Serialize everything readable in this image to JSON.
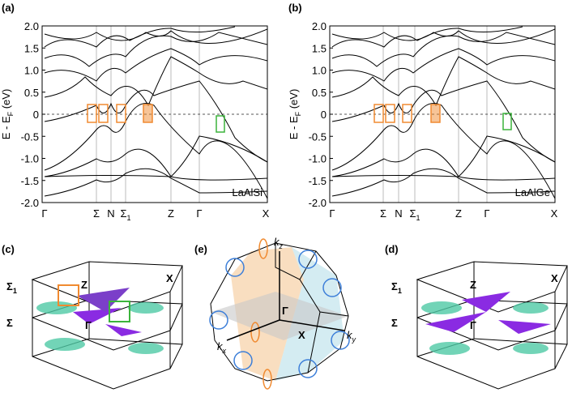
{
  "band_axis": {
    "ylabel": "E - E",
    "ylabel_sub": "F",
    "ylabel_unit": " (eV)",
    "yticks": [
      "2.0",
      "1.5",
      "1.0",
      "0.5",
      "0",
      "-0.5",
      "-1.0",
      "-1.5",
      "-2.0"
    ]
  },
  "kpoints": [
    {
      "label": "Γ"
    },
    {
      "label": "Σ"
    },
    {
      "label": "N"
    },
    {
      "label": "Σ",
      "sub": "1"
    },
    {
      "label": "Z"
    },
    {
      "label": "Γ"
    },
    {
      "label": "X"
    }
  ],
  "panels": {
    "a": {
      "label": "(a)",
      "material": "LaAlSi"
    },
    "b": {
      "label": "(b)",
      "material": "LaAlGe"
    },
    "c": {
      "label": "(c)",
      "points": [
        {
          "label": "Σ",
          "sub": "1"
        },
        {
          "label": "Z"
        },
        {
          "label": "X"
        },
        {
          "label": "Σ"
        },
        {
          "label": "Γ"
        }
      ]
    },
    "e": {
      "label": "(e)",
      "axes": [
        {
          "label": "k",
          "sub": "z"
        },
        {
          "label": "k",
          "sub": "y"
        },
        {
          "label": "k",
          "sub": "x"
        }
      ],
      "points": [
        {
          "label": "Γ"
        },
        {
          "label": "X"
        }
      ]
    },
    "d": {
      "label": "(d)",
      "points": [
        {
          "label": "Σ",
          "sub": "1"
        },
        {
          "label": "Z"
        },
        {
          "label": "X"
        },
        {
          "label": "Σ"
        },
        {
          "label": "Γ"
        }
      ]
    }
  }
}
